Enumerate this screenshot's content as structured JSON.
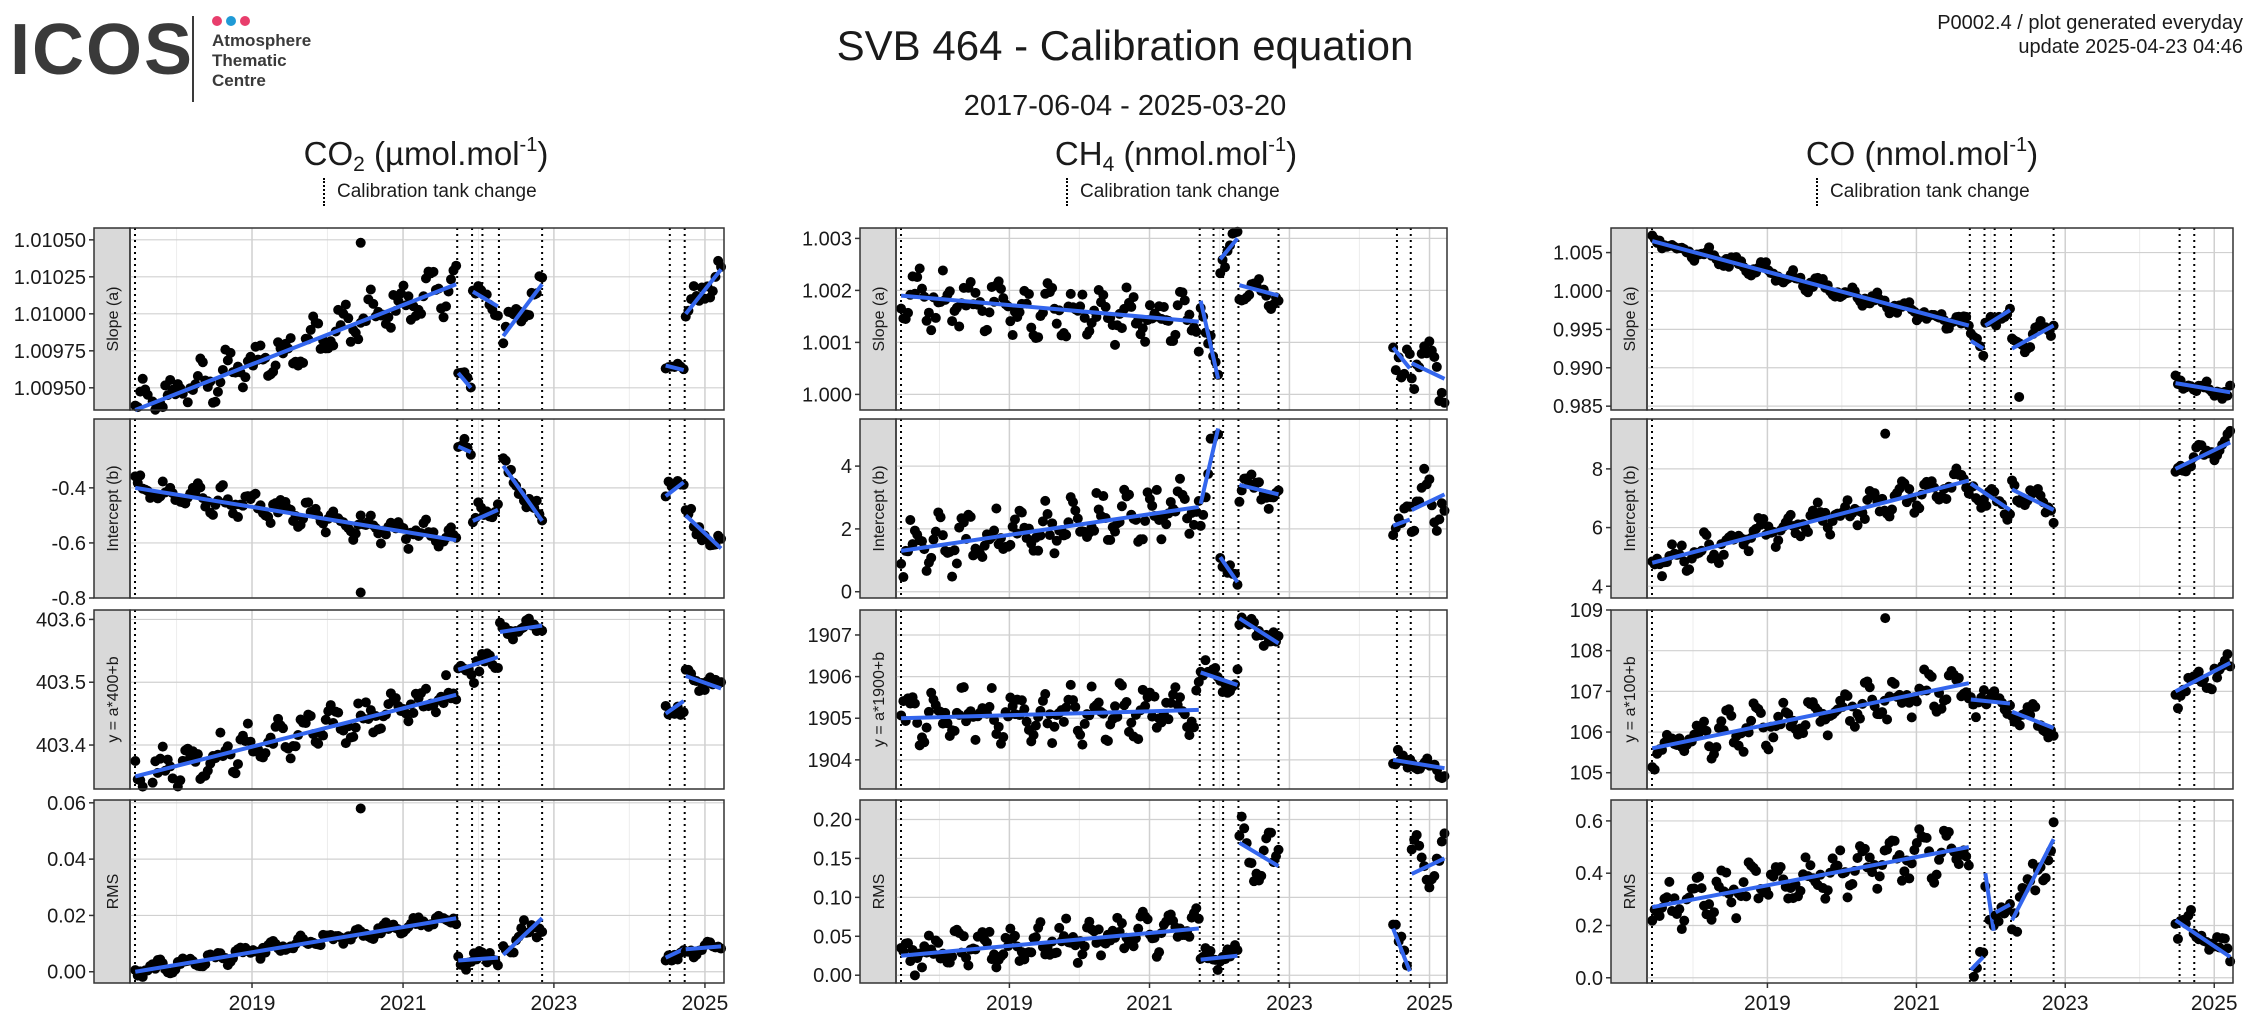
{
  "header": {
    "logo_text": "ICOS",
    "logo_sub": "Atmosphere\nThematic\nCentre",
    "logo_dot_colors": [
      "#e83e6c",
      "#1f9ad6",
      "#e83e6c"
    ],
    "title": "SVB 464 - Calibration equation",
    "date_range": "2017-06-04 - 2025-03-20",
    "meta_line1": "P0002.4 / plot generated everyday",
    "meta_line2": "update  2025-04-23 04:46"
  },
  "groups": [
    {
      "species": "CO",
      "sub": "2",
      "unit": "(µmol.mol",
      "sup": "-1",
      "close": ")",
      "legend": "Calibration tank change"
    },
    {
      "species": "CH",
      "sub": "4",
      "unit": "(nmol.mol",
      "sup": "-1",
      "close": ")",
      "legend": "Calibration tank change"
    },
    {
      "species": "CO",
      "sub": "",
      "unit": "(nmol.mol",
      "sup": "-1",
      "close": ")",
      "legend": "Calibration tank change"
    }
  ],
  "colors": {
    "trend": "#3366ee",
    "points": "#000000",
    "strip": "#d9d9d9",
    "grid_major": "#d0d0d0",
    "grid_minor": "#ececec"
  },
  "chart_data": {
    "type": "scatter",
    "x_range": [
      "2017-06-04",
      "2025-03-20"
    ],
    "x_ticks": [
      "2019",
      "2021",
      "2023",
      "2025"
    ],
    "tank_changes": [
      "2021-09-20",
      "2021-12-01",
      "2022-01-20",
      "2022-04-10",
      "2022-11-05",
      "2024-07-15",
      "2024-09-25"
    ],
    "gaps": [
      [
        "2022-11-25",
        "2024-06-25"
      ]
    ],
    "rows": [
      "Slope (a)",
      "Intercept (b)",
      "y = a*400+b",
      "RMS",
      "y = a*1900+b",
      "y = a*100+b"
    ],
    "panels": [
      {
        "species": "CO2",
        "row": "Slope (a)",
        "ylim": [
          1.00935,
          1.01058
        ],
        "ticks": [
          "1.00950",
          "1.00975",
          "1.01000",
          "1.01025",
          "1.01050"
        ],
        "segments": [
          {
            "start": "2017-06-15",
            "end": "2021-09-15",
            "y_start": 1.00935,
            "y_end": 1.0102,
            "noise": 0.00012
          },
          {
            "start": "2021-09-25",
            "end": "2021-11-25",
            "y_start": 1.0096,
            "y_end": 1.0095,
            "noise": 4e-05
          },
          {
            "start": "2021-12-05",
            "end": "2022-04-05",
            "y_start": 1.01015,
            "y_end": 1.01005,
            "noise": 6e-05
          },
          {
            "start": "2022-05-01",
            "end": "2022-11-05",
            "y_start": 1.00985,
            "y_end": 1.0102,
            "noise": 8e-05
          },
          {
            "start": "2024-06-25",
            "end": "2024-09-20",
            "y_start": 1.00965,
            "y_end": 1.00962,
            "noise": 3e-05
          },
          {
            "start": "2024-09-30",
            "end": "2025-03-20",
            "y_start": 1.01,
            "y_end": 1.0103,
            "noise": 8e-05
          }
        ],
        "outliers": [
          [
            "2020-06-10",
            1.01048
          ]
        ]
      },
      {
        "species": "CO2",
        "row": "Intercept (b)",
        "ylim": [
          -0.8,
          -0.15
        ],
        "ticks": [
          "-0.8",
          "-0.6",
          "-0.4"
        ],
        "segments": [
          {
            "start": "2017-06-15",
            "end": "2021-09-15",
            "y_start": -0.4,
            "y_end": -0.59,
            "noise": 0.04
          },
          {
            "start": "2021-09-25",
            "end": "2021-11-25",
            "y_start": -0.25,
            "y_end": -0.27,
            "noise": 0.03
          },
          {
            "start": "2021-12-05",
            "end": "2022-04-05",
            "y_start": -0.52,
            "y_end": -0.48,
            "noise": 0.04
          },
          {
            "start": "2022-05-01",
            "end": "2022-11-05",
            "y_start": -0.32,
            "y_end": -0.52,
            "noise": 0.03
          },
          {
            "start": "2024-06-25",
            "end": "2024-09-20",
            "y_start": -0.43,
            "y_end": -0.38,
            "noise": 0.03
          },
          {
            "start": "2024-09-30",
            "end": "2025-03-20",
            "y_start": -0.5,
            "y_end": -0.62,
            "noise": 0.04
          }
        ],
        "outliers": [
          [
            "2020-06-10",
            -0.78
          ]
        ]
      },
      {
        "species": "CO2",
        "row": "y = a*400+b",
        "ylim": [
          403.33,
          403.615
        ],
        "ticks": [
          "403.4",
          "403.5",
          "403.6"
        ],
        "segments": [
          {
            "start": "2017-06-15",
            "end": "2021-09-15",
            "y_start": 403.35,
            "y_end": 403.48,
            "noise": 0.025
          },
          {
            "start": "2021-09-25",
            "end": "2022-04-05",
            "y_start": 403.52,
            "y_end": 403.54,
            "noise": 0.02
          },
          {
            "start": "2022-04-15",
            "end": "2022-11-05",
            "y_start": 403.58,
            "y_end": 403.59,
            "noise": 0.01
          },
          {
            "start": "2024-06-25",
            "end": "2024-09-20",
            "y_start": 403.45,
            "y_end": 403.47,
            "noise": 0.015
          },
          {
            "start": "2024-09-30",
            "end": "2025-03-20",
            "y_start": 403.51,
            "y_end": 403.49,
            "noise": 0.012
          }
        ],
        "outliers": []
      },
      {
        "species": "CO2",
        "row": "RMS",
        "ylim": [
          -0.004,
          0.061
        ],
        "ticks": [
          "0.00",
          "0.02",
          "0.04",
          "0.06"
        ],
        "segments": [
          {
            "start": "2017-06-15",
            "end": "2021-09-15",
            "y_start": 0.0,
            "y_end": 0.019,
            "noise": 0.002
          },
          {
            "start": "2021-09-25",
            "end": "2022-04-05",
            "y_start": 0.004,
            "y_end": 0.005,
            "noise": 0.003
          },
          {
            "start": "2022-05-01",
            "end": "2022-11-05",
            "y_start": 0.006,
            "y_end": 0.019,
            "noise": 0.004
          },
          {
            "start": "2024-06-25",
            "end": "2024-09-20",
            "y_start": 0.005,
            "y_end": 0.008,
            "noise": 0.002
          },
          {
            "start": "2024-09-30",
            "end": "2025-03-20",
            "y_start": 0.008,
            "y_end": 0.009,
            "noise": 0.002
          }
        ],
        "outliers": [
          [
            "2020-06-10",
            0.058
          ]
        ]
      },
      {
        "species": "CH4",
        "row": "Slope (a)",
        "ylim": [
          0.9997,
          1.0032
        ],
        "ticks": [
          "1.000",
          "1.001",
          "1.002",
          "1.003"
        ],
        "segments": [
          {
            "start": "2017-06-15",
            "end": "2021-09-15",
            "y_start": 1.0019,
            "y_end": 1.0014,
            "noise": 0.0004
          },
          {
            "start": "2021-09-25",
            "end": "2021-12-25",
            "y_start": 1.0018,
            "y_end": 1.0003,
            "noise": 0.0003
          },
          {
            "start": "2022-01-05",
            "end": "2022-04-05",
            "y_start": 1.0026,
            "y_end": 1.003,
            "noise": 0.0002
          },
          {
            "start": "2022-04-15",
            "end": "2022-11-05",
            "y_start": 1.0021,
            "y_end": 1.0019,
            "noise": 0.0002
          },
          {
            "start": "2024-06-25",
            "end": "2024-09-20",
            "y_start": 1.0009,
            "y_end": 1.0005,
            "noise": 0.0003
          },
          {
            "start": "2024-09-30",
            "end": "2025-03-20",
            "y_start": 1.0006,
            "y_end": 1.0003,
            "noise": 0.0004
          }
        ],
        "outliers": []
      },
      {
        "species": "CH4",
        "row": "Intercept (b)",
        "ylim": [
          -0.2,
          5.5
        ],
        "ticks": [
          "0",
          "2",
          "4"
        ],
        "segments": [
          {
            "start": "2017-06-15",
            "end": "2021-09-15",
            "y_start": 1.3,
            "y_end": 2.7,
            "noise": 0.7
          },
          {
            "start": "2021-09-25",
            "end": "2021-12-25",
            "y_start": 2.8,
            "y_end": 5.2,
            "noise": 0.6
          },
          {
            "start": "2022-01-05",
            "end": "2022-04-05",
            "y_start": 1.1,
            "y_end": 0.3,
            "noise": 0.3
          },
          {
            "start": "2022-04-15",
            "end": "2022-11-05",
            "y_start": 3.4,
            "y_end": 3.1,
            "noise": 0.4
          },
          {
            "start": "2024-06-25",
            "end": "2024-09-20",
            "y_start": 2.1,
            "y_end": 2.3,
            "noise": 0.3
          },
          {
            "start": "2024-09-30",
            "end": "2025-03-20",
            "y_start": 2.6,
            "y_end": 3.1,
            "noise": 0.8
          }
        ],
        "outliers": []
      },
      {
        "species": "CH4",
        "row": "y = a*1900+b",
        "ylim": [
          1903.3,
          1907.6
        ],
        "ticks": [
          "1904",
          "1905",
          "1906",
          "1907"
        ],
        "segments": [
          {
            "start": "2017-06-15",
            "end": "2021-09-15",
            "y_start": 1905.0,
            "y_end": 1905.2,
            "noise": 0.5
          },
          {
            "start": "2021-09-25",
            "end": "2022-04-05",
            "y_start": 1906.1,
            "y_end": 1905.8,
            "noise": 0.3
          },
          {
            "start": "2022-04-15",
            "end": "2022-11-05",
            "y_start": 1907.4,
            "y_end": 1906.8,
            "noise": 0.2
          },
          {
            "start": "2024-06-25",
            "end": "2025-03-20",
            "y_start": 1904.0,
            "y_end": 1903.8,
            "noise": 0.2
          }
        ],
        "outliers": []
      },
      {
        "species": "CH4",
        "row": "RMS",
        "ylim": [
          -0.01,
          0.225
        ],
        "ticks": [
          "0.00",
          "0.05",
          "0.10",
          "0.15",
          "0.20"
        ],
        "segments": [
          {
            "start": "2017-06-15",
            "end": "2021-09-15",
            "y_start": 0.025,
            "y_end": 0.06,
            "noise": 0.02
          },
          {
            "start": "2021-09-25",
            "end": "2022-04-05",
            "y_start": 0.02,
            "y_end": 0.025,
            "noise": 0.01
          },
          {
            "start": "2022-04-15",
            "end": "2022-11-05",
            "y_start": 0.17,
            "y_end": 0.14,
            "noise": 0.03
          },
          {
            "start": "2024-06-25",
            "end": "2024-09-20",
            "y_start": 0.06,
            "y_end": 0.005,
            "noise": 0.02
          },
          {
            "start": "2024-09-30",
            "end": "2025-03-20",
            "y_start": 0.13,
            "y_end": 0.15,
            "noise": 0.03
          }
        ],
        "outliers": []
      },
      {
        "species": "CO",
        "row": "Slope (a)",
        "ylim": [
          0.9845,
          1.0082
        ],
        "ticks": [
          "0.985",
          "0.990",
          "0.995",
          "1.000",
          "1.005"
        ],
        "segments": [
          {
            "start": "2017-06-15",
            "end": "2021-09-15",
            "y_start": 1.0065,
            "y_end": 0.9955,
            "noise": 0.0008
          },
          {
            "start": "2021-09-25",
            "end": "2021-11-25",
            "y_start": 0.9935,
            "y_end": 0.9925,
            "noise": 0.0008
          },
          {
            "start": "2021-12-05",
            "end": "2022-04-05",
            "y_start": 0.9955,
            "y_end": 0.9975,
            "noise": 0.0008
          },
          {
            "start": "2022-04-15",
            "end": "2022-11-05",
            "y_start": 0.9925,
            "y_end": 0.9955,
            "noise": 0.001
          },
          {
            "start": "2024-06-25",
            "end": "2025-03-20",
            "y_start": 0.988,
            "y_end": 0.9868,
            "noise": 0.0008
          }
        ],
        "outliers": [
          [
            "2022-05-20",
            0.9862
          ]
        ]
      },
      {
        "species": "CO",
        "row": "Intercept (b)",
        "ylim": [
          3.6,
          9.7
        ],
        "ticks": [
          "4",
          "6",
          "8"
        ],
        "segments": [
          {
            "start": "2017-06-15",
            "end": "2021-09-15",
            "y_start": 4.8,
            "y_end": 7.6,
            "noise": 0.4
          },
          {
            "start": "2021-09-25",
            "end": "2022-04-05",
            "y_start": 7.5,
            "y_end": 6.6,
            "noise": 0.4
          },
          {
            "start": "2022-04-15",
            "end": "2022-11-05",
            "y_start": 7.3,
            "y_end": 6.6,
            "noise": 0.3
          },
          {
            "start": "2024-06-25",
            "end": "2025-03-20",
            "y_start": 8.0,
            "y_end": 8.9,
            "noise": 0.3
          }
        ],
        "outliers": [
          [
            "2020-08-01",
            9.2
          ]
        ]
      },
      {
        "species": "CO",
        "row": "y = a*100+b",
        "ylim": [
          104.6,
          109.0
        ],
        "ticks": [
          "105",
          "106",
          "107",
          "108",
          "109"
        ],
        "segments": [
          {
            "start": "2017-06-15",
            "end": "2021-09-15",
            "y_start": 105.6,
            "y_end": 107.2,
            "noise": 0.4
          },
          {
            "start": "2021-09-25",
            "end": "2022-04-05",
            "y_start": 106.8,
            "y_end": 106.7,
            "noise": 0.3
          },
          {
            "start": "2022-04-15",
            "end": "2022-11-05",
            "y_start": 106.5,
            "y_end": 106.1,
            "noise": 0.3
          },
          {
            "start": "2024-06-25",
            "end": "2025-03-20",
            "y_start": 107.0,
            "y_end": 107.7,
            "noise": 0.3
          }
        ],
        "outliers": [
          [
            "2020-08-01",
            108.8
          ]
        ]
      },
      {
        "species": "CO",
        "row": "RMS",
        "ylim": [
          -0.02,
          0.68
        ],
        "ticks": [
          "0.0",
          "0.2",
          "0.4",
          "0.6"
        ],
        "segments": [
          {
            "start": "2017-06-15",
            "end": "2021-09-15",
            "y_start": 0.27,
            "y_end": 0.5,
            "noise": 0.07
          },
          {
            "start": "2021-09-25",
            "end": "2021-11-25",
            "y_start": 0.03,
            "y_end": 0.08,
            "noise": 0.04
          },
          {
            "start": "2021-12-05",
            "end": "2022-01-15",
            "y_start": 0.4,
            "y_end": 0.18,
            "noise": 0.05
          },
          {
            "start": "2022-01-25",
            "end": "2022-04-05",
            "y_start": 0.25,
            "y_end": 0.28,
            "noise": 0.05
          },
          {
            "start": "2022-04-15",
            "end": "2022-11-05",
            "y_start": 0.22,
            "y_end": 0.53,
            "noise": 0.08
          },
          {
            "start": "2024-06-25",
            "end": "2025-03-20",
            "y_start": 0.22,
            "y_end": 0.08,
            "noise": 0.05
          }
        ],
        "outliers": []
      }
    ]
  }
}
